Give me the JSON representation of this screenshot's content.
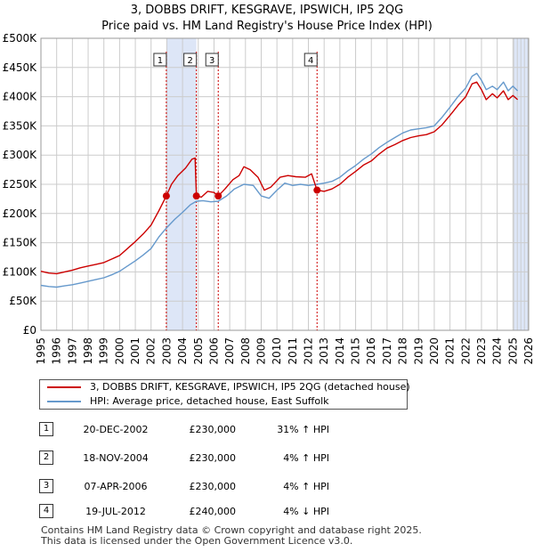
{
  "header": {
    "title_line1": "3, DOBBS DRIFT, KESGRAVE, IPSWICH, IP5 2QG",
    "title_line2": "Price paid vs. HM Land Registry's House Price Index (HPI)"
  },
  "colors": {
    "property": "#cc0000",
    "hpi": "#6699cc",
    "shade": "#dde6f7",
    "grid": "#cccccc",
    "marker_line": "#cc0000"
  },
  "chart_data": {
    "type": "line",
    "title": "3, DOBBS DRIFT, KESGRAVE, IPSWICH, IP5 2QG",
    "subtitle": "Price paid vs. HM Land Registry's House Price Index (HPI)",
    "xlim": [
      1995,
      2026
    ],
    "ylim": [
      0,
      500000
    ],
    "x_ticks": [
      "1995",
      "1996",
      "1997",
      "1998",
      "1999",
      "2000",
      "2001",
      "2002",
      "2003",
      "2004",
      "2005",
      "2006",
      "2007",
      "2008",
      "2009",
      "2010",
      "2011",
      "2012",
      "2013",
      "2014",
      "2015",
      "2016",
      "2017",
      "2018",
      "2019",
      "2020",
      "2021",
      "2022",
      "2023",
      "2024",
      "2025",
      "2026"
    ],
    "y_ticks": [
      {
        "value": 0,
        "label": "£0"
      },
      {
        "value": 50000,
        "label": "£50K"
      },
      {
        "value": 100000,
        "label": "£100K"
      },
      {
        "value": 150000,
        "label": "£150K"
      },
      {
        "value": 200000,
        "label": "£200K"
      },
      {
        "value": 250000,
        "label": "£250K"
      },
      {
        "value": 300000,
        "label": "£300K"
      },
      {
        "value": 350000,
        "label": "£350K"
      },
      {
        "value": 400000,
        "label": "£400K"
      },
      {
        "value": 450000,
        "label": "£450K"
      },
      {
        "value": 500000,
        "label": "£500K"
      }
    ],
    "shaded_ranges": [
      [
        2002.97,
        2004.88
      ],
      [
        2006.27,
        2006.27
      ],
      [
        2025.05,
        2026
      ]
    ],
    "series": [
      {
        "name": "3, DOBBS DRIFT, KESGRAVE, IPSWICH, IP5 2QG (detached house)",
        "color": "#cc0000",
        "points": [
          [
            1995,
            101000
          ],
          [
            1995.5,
            98000
          ],
          [
            1996,
            97000
          ],
          [
            1996.5,
            100000
          ],
          [
            1997,
            103000
          ],
          [
            1997.5,
            107000
          ],
          [
            1998,
            110000
          ],
          [
            1998.5,
            113000
          ],
          [
            1999,
            116000
          ],
          [
            1999.5,
            122000
          ],
          [
            2000,
            128000
          ],
          [
            2000.5,
            140000
          ],
          [
            2001,
            152000
          ],
          [
            2001.5,
            165000
          ],
          [
            2002,
            180000
          ],
          [
            2002.5,
            205000
          ],
          [
            2002.97,
            230000
          ],
          [
            2003.3,
            250000
          ],
          [
            2003.7,
            265000
          ],
          [
            2004.2,
            278000
          ],
          [
            2004.6,
            293000
          ],
          [
            2004.8,
            295000
          ],
          [
            2004.88,
            230000
          ],
          [
            2005.2,
            228000
          ],
          [
            2005.6,
            238000
          ],
          [
            2006,
            236000
          ],
          [
            2006.27,
            230000
          ],
          [
            2006.7,
            242000
          ],
          [
            2007.2,
            258000
          ],
          [
            2007.6,
            265000
          ],
          [
            2007.9,
            280000
          ],
          [
            2008.3,
            275000
          ],
          [
            2008.8,
            262000
          ],
          [
            2009.2,
            240000
          ],
          [
            2009.6,
            245000
          ],
          [
            2010.2,
            262000
          ],
          [
            2010.7,
            265000
          ],
          [
            2011.2,
            263000
          ],
          [
            2011.8,
            262000
          ],
          [
            2012.2,
            268000
          ],
          [
            2012.55,
            240000
          ],
          [
            2013,
            238000
          ],
          [
            2013.5,
            242000
          ],
          [
            2014,
            250000
          ],
          [
            2014.5,
            262000
          ],
          [
            2015,
            272000
          ],
          [
            2015.5,
            283000
          ],
          [
            2016,
            290000
          ],
          [
            2016.5,
            302000
          ],
          [
            2017,
            312000
          ],
          [
            2017.5,
            318000
          ],
          [
            2018,
            325000
          ],
          [
            2018.5,
            330000
          ],
          [
            2019,
            333000
          ],
          [
            2019.5,
            335000
          ],
          [
            2020,
            340000
          ],
          [
            2020.5,
            352000
          ],
          [
            2021,
            368000
          ],
          [
            2021.5,
            385000
          ],
          [
            2022,
            400000
          ],
          [
            2022.4,
            422000
          ],
          [
            2022.7,
            425000
          ],
          [
            2023,
            412000
          ],
          [
            2023.3,
            395000
          ],
          [
            2023.7,
            405000
          ],
          [
            2024,
            398000
          ],
          [
            2024.4,
            410000
          ],
          [
            2024.7,
            395000
          ],
          [
            2025,
            402000
          ],
          [
            2025.3,
            395000
          ]
        ]
      },
      {
        "name": "HPI: Average price, detached house, East Suffolk",
        "color": "#6699cc",
        "points": [
          [
            1995,
            77000
          ],
          [
            1995.5,
            75000
          ],
          [
            1996,
            74000
          ],
          [
            1996.5,
            76000
          ],
          [
            1997,
            78000
          ],
          [
            1997.5,
            81000
          ],
          [
            1998,
            84000
          ],
          [
            1998.5,
            87000
          ],
          [
            1999,
            90000
          ],
          [
            1999.5,
            95000
          ],
          [
            2000,
            101000
          ],
          [
            2000.5,
            110000
          ],
          [
            2001,
            119000
          ],
          [
            2001.5,
            129000
          ],
          [
            2002,
            140000
          ],
          [
            2002.5,
            160000
          ],
          [
            2002.97,
            175000
          ],
          [
            2003.5,
            190000
          ],
          [
            2004,
            202000
          ],
          [
            2004.5,
            215000
          ],
          [
            2004.88,
            221000
          ],
          [
            2005.3,
            222000
          ],
          [
            2005.8,
            220000
          ],
          [
            2006.27,
            221000
          ],
          [
            2006.8,
            230000
          ],
          [
            2007.3,
            242000
          ],
          [
            2007.9,
            250000
          ],
          [
            2008.5,
            248000
          ],
          [
            2009,
            230000
          ],
          [
            2009.5,
            226000
          ],
          [
            2010,
            240000
          ],
          [
            2010.5,
            252000
          ],
          [
            2011,
            248000
          ],
          [
            2011.5,
            250000
          ],
          [
            2012,
            248000
          ],
          [
            2012.55,
            250000
          ],
          [
            2013,
            252000
          ],
          [
            2013.5,
            255000
          ],
          [
            2014,
            262000
          ],
          [
            2014.5,
            273000
          ],
          [
            2015,
            282000
          ],
          [
            2015.5,
            293000
          ],
          [
            2016,
            302000
          ],
          [
            2016.5,
            313000
          ],
          [
            2017,
            322000
          ],
          [
            2017.5,
            330000
          ],
          [
            2018,
            338000
          ],
          [
            2018.5,
            343000
          ],
          [
            2019,
            345000
          ],
          [
            2019.5,
            347000
          ],
          [
            2020,
            350000
          ],
          [
            2020.5,
            365000
          ],
          [
            2021,
            382000
          ],
          [
            2021.5,
            400000
          ],
          [
            2022,
            415000
          ],
          [
            2022.4,
            435000
          ],
          [
            2022.7,
            440000
          ],
          [
            2023,
            428000
          ],
          [
            2023.3,
            412000
          ],
          [
            2023.7,
            418000
          ],
          [
            2024,
            412000
          ],
          [
            2024.4,
            425000
          ],
          [
            2024.7,
            410000
          ],
          [
            2025,
            418000
          ],
          [
            2025.3,
            410000
          ]
        ]
      }
    ],
    "sales": [
      {
        "n": "1",
        "x": 2002.97,
        "price": 230000,
        "date": "20-DEC-2002",
        "price_label": "£230,000",
        "hpi_label": "31% ↑ HPI"
      },
      {
        "n": "2",
        "x": 2004.88,
        "price": 230000,
        "date": "18-NOV-2004",
        "price_label": "£230,000",
        "hpi_label": "4% ↑ HPI"
      },
      {
        "n": "3",
        "x": 2006.27,
        "price": 230000,
        "date": "07-APR-2006",
        "price_label": "£230,000",
        "hpi_label": "4% ↑ HPI"
      },
      {
        "n": "4",
        "x": 2012.55,
        "price": 240000,
        "date": "19-JUL-2012",
        "price_label": "£240,000",
        "hpi_label": "4% ↓ HPI"
      }
    ]
  },
  "legend": {
    "property_label": "3, DOBBS DRIFT, KESGRAVE, IPSWICH, IP5 2QG (detached house)",
    "hpi_label": "HPI: Average price, detached house, East Suffolk"
  },
  "footer": {
    "line1": "Contains HM Land Registry data © Crown copyright and database right 2025.",
    "line2": "This data is licensed under the Open Government Licence v3.0."
  }
}
